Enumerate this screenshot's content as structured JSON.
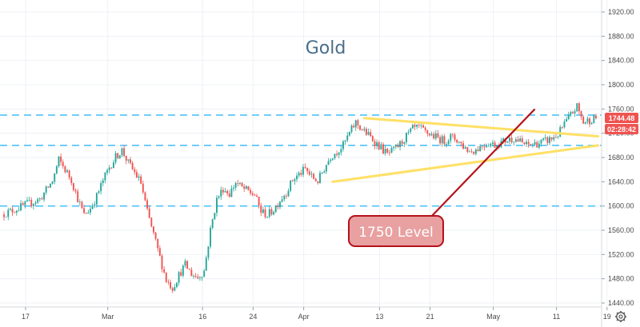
{
  "chart_data": {
    "type": "candlestick",
    "title": "Gold",
    "y_axis": {
      "min": 1430,
      "max": 1930,
      "ticks": [
        "1920.00",
        "1880.00",
        "1840.00",
        "1800.00",
        "1760.00",
        "1720.00",
        "1680.00",
        "1640.00",
        "1600.00",
        "1560.00",
        "1520.00",
        "1480.00",
        "1440.00"
      ],
      "position": "right"
    },
    "x_axis": {
      "ticks": [
        {
          "label": "17",
          "day": 0
        },
        {
          "label": "Mar",
          "day": 13
        },
        {
          "label": "16",
          "day": 28
        },
        {
          "label": "24",
          "day": 36
        },
        {
          "label": "Apr",
          "day": 44
        },
        {
          "label": "13",
          "day": 56
        },
        {
          "label": "21",
          "day": 64
        },
        {
          "label": "May",
          "day": 74
        },
        {
          "label": "11",
          "day": 84
        },
        {
          "label": "19",
          "day": 92
        }
      ]
    },
    "grid": true,
    "horizontal_levels": [
      1750,
      1700,
      1600
    ],
    "triangle": {
      "upper": [
        [
          57,
          1745
        ],
        [
          94,
          1715
        ]
      ],
      "lower": [
        [
          52,
          1640
        ],
        [
          94,
          1700
        ]
      ]
    },
    "series": [
      {
        "daily_close": [
          [
            0,
            1586
          ],
          [
            2,
            1594
          ],
          [
            4,
            1603
          ],
          [
            6,
            1611
          ],
          [
            8,
            1641
          ],
          [
            9,
            1676
          ],
          [
            10,
            1660
          ],
          [
            11,
            1643
          ],
          [
            12,
            1612
          ],
          [
            13,
            1585
          ],
          [
            14,
            1596
          ],
          [
            15,
            1616
          ],
          [
            16,
            1642
          ],
          [
            17,
            1664
          ],
          [
            18,
            1681
          ],
          [
            19,
            1692
          ],
          [
            20,
            1671
          ],
          [
            21,
            1655
          ],
          [
            22,
            1638
          ],
          [
            23,
            1590
          ],
          [
            24,
            1553
          ],
          [
            25,
            1515
          ],
          [
            26,
            1478
          ],
          [
            27,
            1465
          ],
          [
            28,
            1486
          ],
          [
            29,
            1503
          ],
          [
            30,
            1488
          ],
          [
            31,
            1482
          ],
          [
            32,
            1493
          ],
          [
            33,
            1560
          ],
          [
            34,
            1611
          ],
          [
            35,
            1629
          ],
          [
            36,
            1620
          ],
          [
            37,
            1639
          ],
          [
            38,
            1630
          ],
          [
            39,
            1624
          ],
          [
            40,
            1618
          ],
          [
            41,
            1591
          ],
          [
            42,
            1585
          ],
          [
            43,
            1594
          ],
          [
            44,
            1610
          ],
          [
            45,
            1623
          ],
          [
            46,
            1643
          ],
          [
            47,
            1652
          ],
          [
            48,
            1661
          ],
          [
            49,
            1648
          ],
          [
            50,
            1641
          ],
          [
            51,
            1662
          ],
          [
            52,
            1682
          ],
          [
            53,
            1690
          ],
          [
            54,
            1700
          ],
          [
            55,
            1720
          ],
          [
            56,
            1738
          ],
          [
            57,
            1726
          ],
          [
            58,
            1717
          ],
          [
            59,
            1706
          ],
          [
            60,
            1696
          ],
          [
            61,
            1685
          ],
          [
            62,
            1692
          ],
          [
            63,
            1702
          ],
          [
            64,
            1715
          ],
          [
            65,
            1727
          ],
          [
            66,
            1729
          ],
          [
            67,
            1722
          ],
          [
            68,
            1717
          ],
          [
            69,
            1712
          ],
          [
            70,
            1707
          ],
          [
            71,
            1714
          ],
          [
            72,
            1709
          ],
          [
            73,
            1699
          ],
          [
            74,
            1690
          ],
          [
            75,
            1693
          ],
          [
            76,
            1700
          ],
          [
            77,
            1704
          ],
          [
            78,
            1701
          ],
          [
            79,
            1705
          ],
          [
            80,
            1709
          ],
          [
            81,
            1712
          ],
          [
            82,
            1706
          ],
          [
            83,
            1700
          ],
          [
            84,
            1702
          ],
          [
            85,
            1704
          ],
          [
            86,
            1707
          ],
          [
            87,
            1711
          ],
          [
            88,
            1718
          ],
          [
            89,
            1735
          ],
          [
            90,
            1750
          ],
          [
            91,
            1764
          ],
          [
            92,
            1738
          ],
          [
            93,
            1742
          ],
          [
            94,
            1745
          ]
        ]
      }
    ],
    "annotations": [
      {
        "text": "1750 Level",
        "points_to": [
          84,
          1760
        ]
      }
    ],
    "last_price": "1744.48",
    "countdown": "02:28:42"
  },
  "colors": {
    "up": "#26a69a",
    "down": "#ef5350",
    "level_line": "#4fc3f7",
    "triangle": "#ffe066",
    "arrow": "#b5121b",
    "callout_fill": "#e8a0a0",
    "callout_border": "#b5121b",
    "title": "#4a6e8a",
    "grid": "#eef1f5"
  },
  "icons": {
    "settings": "gear-icon"
  }
}
